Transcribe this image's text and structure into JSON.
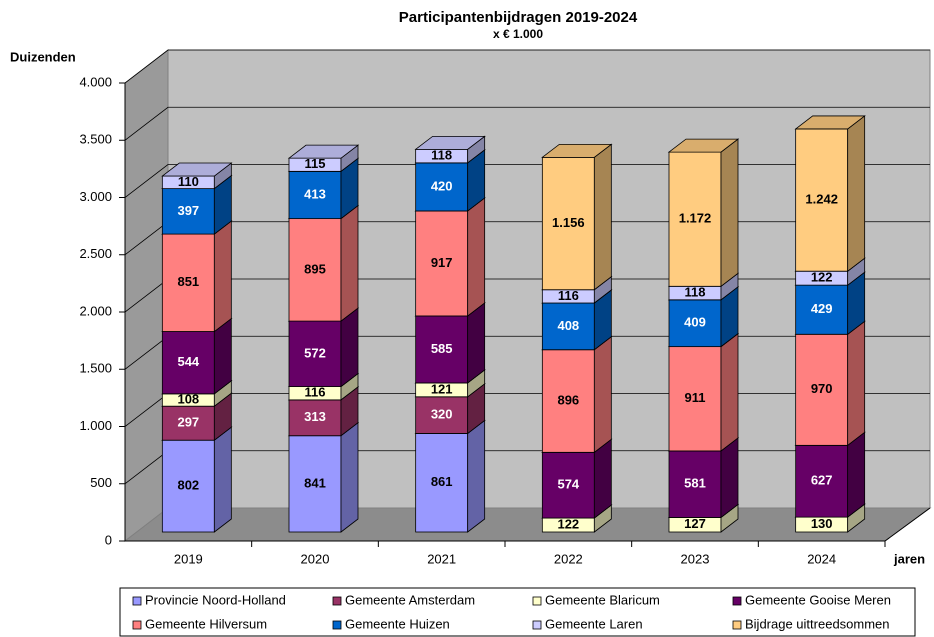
{
  "chart_data": {
    "type": "bar3d_stacked",
    "title": "Participantenbijdragen 2019-2024",
    "subtitle": "x € 1.000",
    "y_label": "Duizenden",
    "x_label": "jaren",
    "categories": [
      "2019",
      "2020",
      "2021",
      "2022",
      "2023",
      "2024"
    ],
    "series": [
      {
        "name": "Provincie Noord-Holland",
        "color": "#9999ff",
        "values": [
          802,
          841,
          861,
          null,
          null,
          null
        ]
      },
      {
        "name": "Gemeente Amsterdam",
        "color": "#993366",
        "values": [
          297,
          313,
          320,
          null,
          null,
          null
        ]
      },
      {
        "name": "Gemeente Blaricum",
        "color": "#ffffcc",
        "values": [
          108,
          116,
          121,
          122,
          127,
          130
        ]
      },
      {
        "name": "Gemeente Gooise Meren",
        "color": "#660066",
        "values": [
          544,
          572,
          585,
          574,
          581,
          627
        ]
      },
      {
        "name": "Gemeente Hilversum",
        "color": "#ff8080",
        "values": [
          851,
          895,
          917,
          896,
          911,
          970
        ]
      },
      {
        "name": "Gemeente Huizen",
        "color": "#0066cc",
        "values": [
          397,
          413,
          420,
          408,
          409,
          429
        ]
      },
      {
        "name": "Gemeente Laren",
        "color": "#ccccff",
        "values": [
          110,
          115,
          118,
          116,
          118,
          122
        ]
      },
      {
        "name": "Bijdrage uittreedsommen",
        "color": "#ffcc80",
        "values": [
          null,
          null,
          null,
          1156,
          1172,
          1242
        ],
        "value_labels": [
          null,
          null,
          null,
          "1.156",
          "1.172",
          "1.242"
        ]
      }
    ],
    "ylim": [
      0,
      4000
    ],
    "yticks": [
      0,
      500,
      {
        "value": 1000,
        "label": "1.000"
      },
      {
        "value": 1500,
        "label": "1.500"
      },
      {
        "value": 2000,
        "label": "2.000"
      },
      {
        "value": 2500,
        "label": "2.500"
      },
      {
        "value": 3000,
        "label": "3.000"
      },
      {
        "value": 3500,
        "label": "3.500"
      },
      {
        "value": 4000,
        "label": "4.000"
      }
    ],
    "grid": true,
    "legend": "bottom"
  }
}
